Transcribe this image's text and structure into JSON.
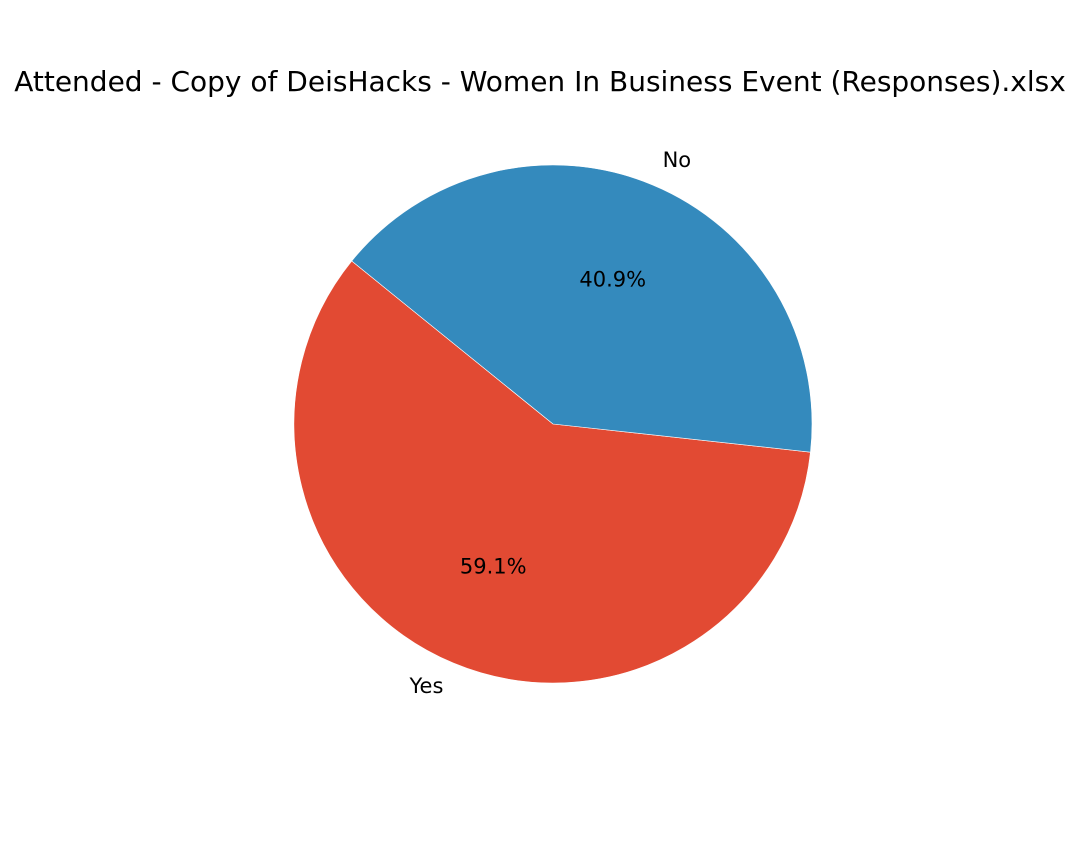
{
  "chart_data": {
    "type": "pie",
    "title": "Attended - Copy of DeisHacks - Women In Business Event (Responses).xlsx",
    "slices": [
      {
        "label": "Yes",
        "value": 59.1,
        "pct_label": "59.1%",
        "color": "#e24a33"
      },
      {
        "label": "No",
        "value": 40.9,
        "pct_label": "40.9%",
        "color": "#348abd"
      }
    ],
    "start_angle_deg": 141,
    "direction": "counterclockwise",
    "legend": "none"
  }
}
